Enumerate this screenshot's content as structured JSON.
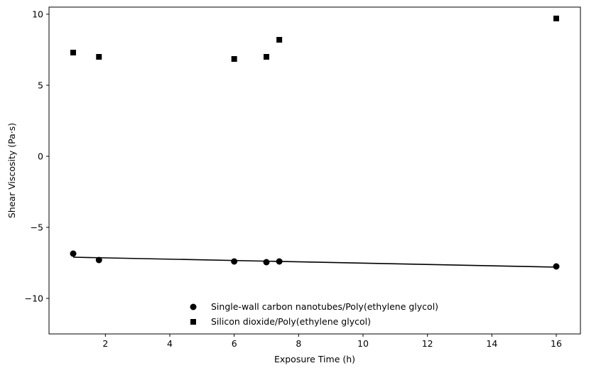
{
  "chart_data": {
    "type": "scatter",
    "title": "",
    "xlabel": "Exposure Time (h)",
    "ylabel": "Shear Viscosity (Pa·s)",
    "xlim": [
      0.25,
      16.75
    ],
    "ylim": [
      -12.5,
      10.5
    ],
    "xticks": [
      2,
      4,
      6,
      8,
      10,
      12,
      14,
      16
    ],
    "yticks": [
      -10,
      -5,
      0,
      5,
      10
    ],
    "xtick_labels": [
      "2",
      "4",
      "6",
      "8",
      "10",
      "12",
      "14",
      "16"
    ],
    "ytick_labels": [
      "−10",
      "−5",
      "0",
      "5",
      "10"
    ],
    "grid": false,
    "legend_position": "bottom-center",
    "series": [
      {
        "name": "Single-wall carbon nanotubes/Poly(ethylene glycol)",
        "marker": "circle",
        "color": "#000000",
        "x": [
          1.0,
          1.8,
          6.0,
          7.0,
          7.4,
          16.0
        ],
        "y": [
          -6.85,
          -7.3,
          -7.4,
          -7.45,
          -7.4,
          -7.75
        ]
      },
      {
        "name": "Silicon dioxide/Poly(ethylene glycol)",
        "marker": "square",
        "color": "#000000",
        "x": [
          1.0,
          1.8,
          6.0,
          7.0,
          7.4,
          16.0
        ],
        "y": [
          7.3,
          7.0,
          6.85,
          7.0,
          8.2,
          9.7
        ]
      }
    ],
    "trendlines": [
      {
        "series": "Single-wall carbon nanotubes/Poly(ethylene glycol)",
        "x": [
          1.0,
          16.0
        ],
        "y": [
          -7.1,
          -7.8
        ],
        "color": "#000000"
      }
    ]
  }
}
